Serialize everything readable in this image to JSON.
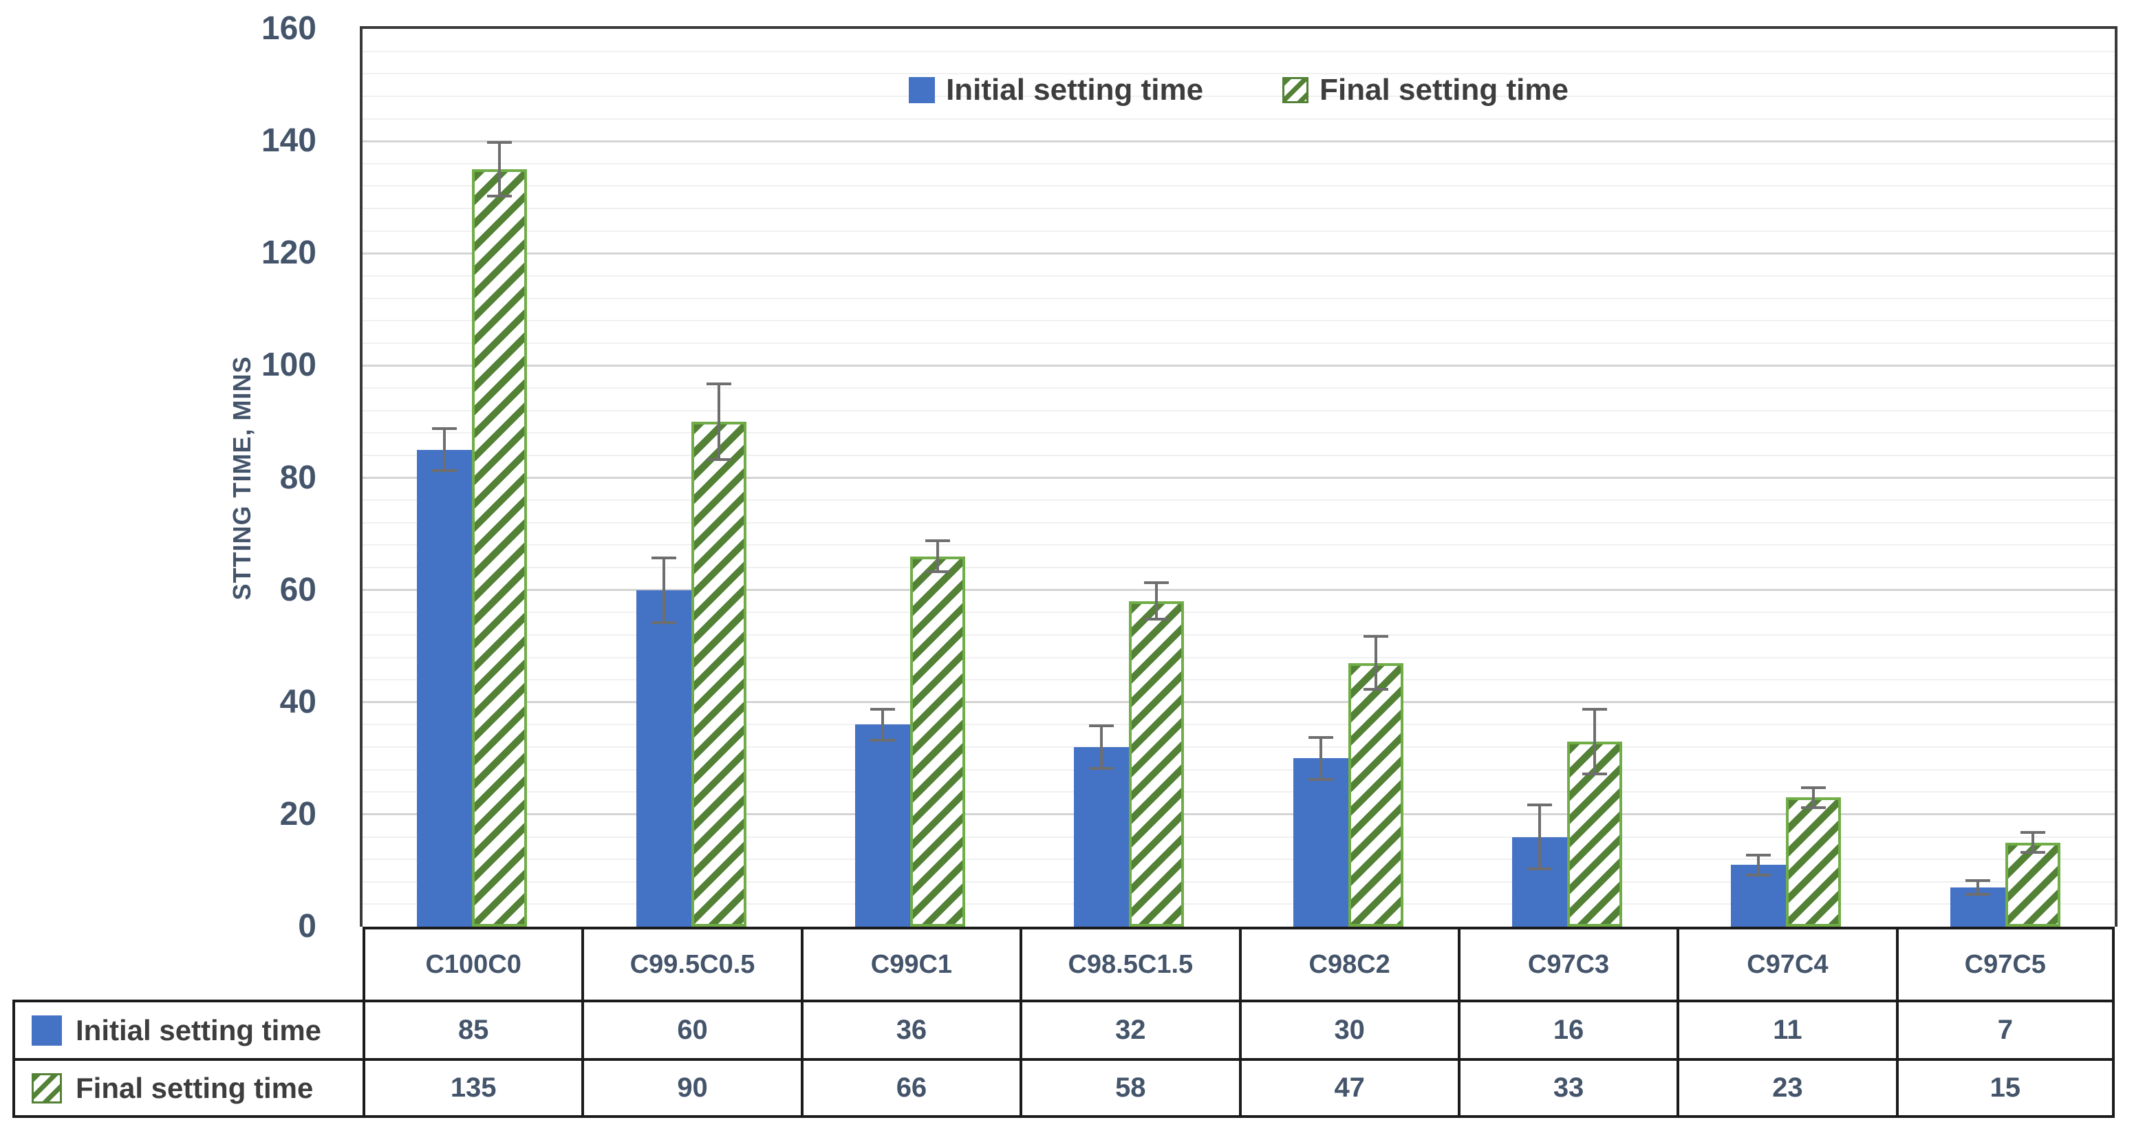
{
  "chart_data": {
    "type": "bar",
    "title": "",
    "ylabel": "STTING TIME, MINS",
    "xlabel": "",
    "ylim": [
      0,
      160
    ],
    "y_major": 20,
    "y_minor": 4,
    "grid": true,
    "legend_position": "top-center",
    "error_bars": true,
    "data_table": true,
    "categories": [
      "C100C0",
      "C99.5C0.5",
      "C99C1",
      "C98.5C1.5",
      "C98C2",
      "C97C3",
      "C97C4",
      "C97C5"
    ],
    "series": [
      {
        "name": "Initial setting time",
        "values": [
          85,
          60,
          36,
          32,
          30,
          16,
          11,
          7
        ],
        "errors": [
          4,
          6,
          3,
          4,
          4,
          6,
          2,
          1.5
        ],
        "color": "#4472C4",
        "pattern": "solid"
      },
      {
        "name": "Final setting time",
        "values": [
          135,
          90,
          66,
          58,
          47,
          33,
          23,
          15
        ],
        "errors": [
          5,
          7,
          3,
          3.5,
          5,
          6,
          2,
          2
        ],
        "color": "#538135",
        "border_color": "#70AD47",
        "pattern": "diagonal-hatch"
      }
    ]
  },
  "y_axis": {
    "ticks": [
      "0",
      "20",
      "40",
      "60",
      "80",
      "100",
      "120",
      "140",
      "160"
    ]
  },
  "colors": {
    "initial_bar": "#4472C4",
    "final_bar_stripe": "#538135",
    "final_bar_border": "#70AD47",
    "error_bar": "#6e6e6e",
    "gridline_major": "#d4d4d4",
    "gridline_minor": "#f0f0f0",
    "table_border": "#1b1b1b",
    "tick_text": "#44546A",
    "legend_text": "#3d3d3d"
  }
}
